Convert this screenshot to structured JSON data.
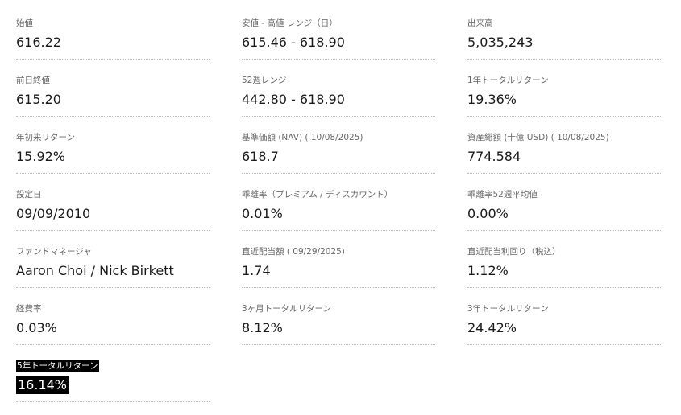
{
  "stats": [
    {
      "label": "始値",
      "value": "616.22"
    },
    {
      "label": "安値 - 高値 レンジ（日）",
      "value": "615.46 - 618.90"
    },
    {
      "label": "出来高",
      "value": "5,035,243"
    },
    {
      "label": "前日終値",
      "value": "615.20"
    },
    {
      "label": "52週レンジ",
      "value": "442.80 - 618.90"
    },
    {
      "label": "1年トータルリターン",
      "value": "19.36%"
    },
    {
      "label": "年初来リターン",
      "value": "15.92%"
    },
    {
      "label": "基準価額 (NAV) ( 10/08/2025)",
      "value": "618.7"
    },
    {
      "label": "資産総額 (十億 USD) ( 10/08/2025)",
      "value": "774.584"
    },
    {
      "label": "設定日",
      "value": "09/09/2010"
    },
    {
      "label": "乖離率（プレミアム / ディスカウント）",
      "value": "0.01%"
    },
    {
      "label": "乖離率52週平均値",
      "value": "0.00%"
    },
    {
      "label": "ファンドマネージャ",
      "value": "Aaron Choi / Nick Birkett"
    },
    {
      "label": "直近配当額 ( 09/29/2025)",
      "value": "1.74"
    },
    {
      "label": "直近配当利回り（税込）",
      "value": "1.12%"
    },
    {
      "label": "経費率",
      "value": "0.03%"
    },
    {
      "label": "3ヶ月トータルリターン",
      "value": "8.12%"
    },
    {
      "label": "3年トータルリターン",
      "value": "24.42%"
    },
    {
      "label": "5年トータルリターン",
      "value": "16.14%"
    }
  ]
}
